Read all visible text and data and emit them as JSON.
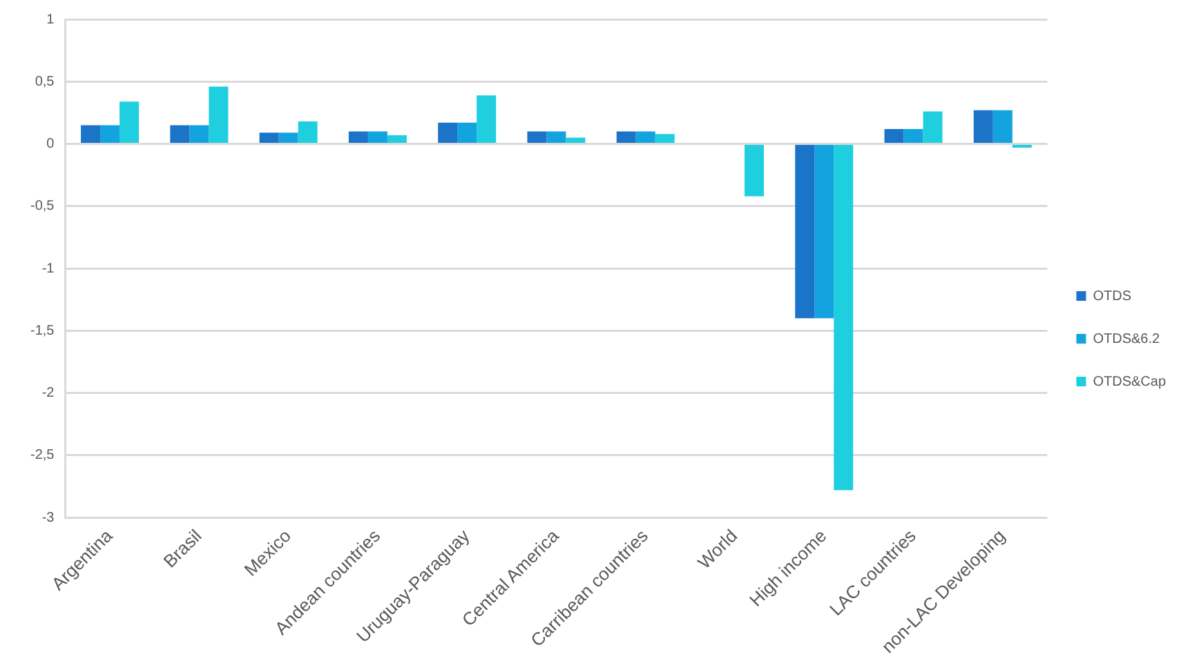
{
  "chart_data": {
    "type": "bar",
    "categories": [
      "Argentina",
      "Brasil",
      "Mexico",
      "Andean countries",
      "Uruguay-Paraguay",
      "Central America",
      "Carribean countries",
      "World",
      "High income",
      "LAC countries",
      "non-LAC Developing"
    ],
    "series": [
      {
        "name": "OTDS",
        "color": "#1c74c9",
        "values": [
          0.15,
          0.15,
          0.09,
          0.1,
          0.17,
          0.1,
          0.1,
          0,
          -1.4,
          0.12,
          0.27
        ]
      },
      {
        "name": "OTDS&6.2",
        "color": "#13a3df",
        "values": [
          0.15,
          0.15,
          0.09,
          0.1,
          0.17,
          0.1,
          0.1,
          0,
          -1.4,
          0.12,
          0.27
        ]
      },
      {
        "name": "OTDS&Cap",
        "color": "#1fcfe0",
        "values": [
          0.34,
          0.46,
          0.18,
          0.07,
          0.39,
          0.05,
          0.08,
          -0.42,
          -2.78,
          0.26,
          -0.03
        ]
      }
    ],
    "ylim": [
      -3,
      1
    ],
    "yticks": [
      -3,
      {
        "value": -2.5,
        "label": "-2,5"
      },
      -2,
      {
        "value": -1.5,
        "label": "-1,5"
      },
      -1,
      {
        "value": -0.5,
        "label": "-0,5"
      },
      0,
      {
        "value": 0.5,
        "label": "0,5"
      },
      1
    ],
    "grid": "y",
    "legend": "right"
  }
}
